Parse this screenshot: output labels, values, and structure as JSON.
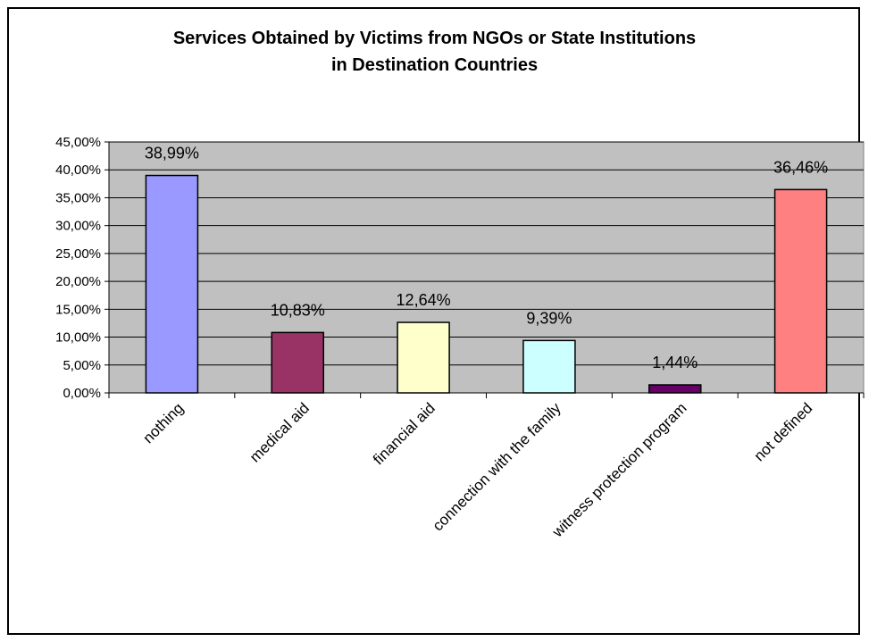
{
  "chart_data": {
    "type": "bar",
    "title_line1": "Services Obtained by Victims from NGOs or State Institutions",
    "title_line2": "in Destination Countries",
    "xlabel": "",
    "ylabel": "",
    "ylim": [
      0,
      45
    ],
    "y_ticks": [
      0,
      5,
      10,
      15,
      20,
      25,
      30,
      35,
      40,
      45
    ],
    "y_tick_labels": [
      "0,00%",
      "5,00%",
      "10,00%",
      "15,00%",
      "20,00%",
      "25,00%",
      "30,00%",
      "35,00%",
      "40,00%",
      "45,00%"
    ],
    "categories": [
      "nothing",
      "medical aid",
      "financial aid",
      "connection with the family",
      "witness protection program",
      "not defined"
    ],
    "values": [
      38.99,
      10.83,
      12.64,
      9.39,
      1.44,
      36.46
    ],
    "value_labels": [
      "38,99%",
      "10,83%",
      "12,64%",
      "9,39%",
      "1,44%",
      "36,46%"
    ],
    "bar_colors": [
      "#9999ff",
      "#993366",
      "#ffffcc",
      "#ccffff",
      "#660066",
      "#ff8080"
    ],
    "plot_background": "#c0c0c0",
    "grid": true,
    "legend": "none"
  }
}
